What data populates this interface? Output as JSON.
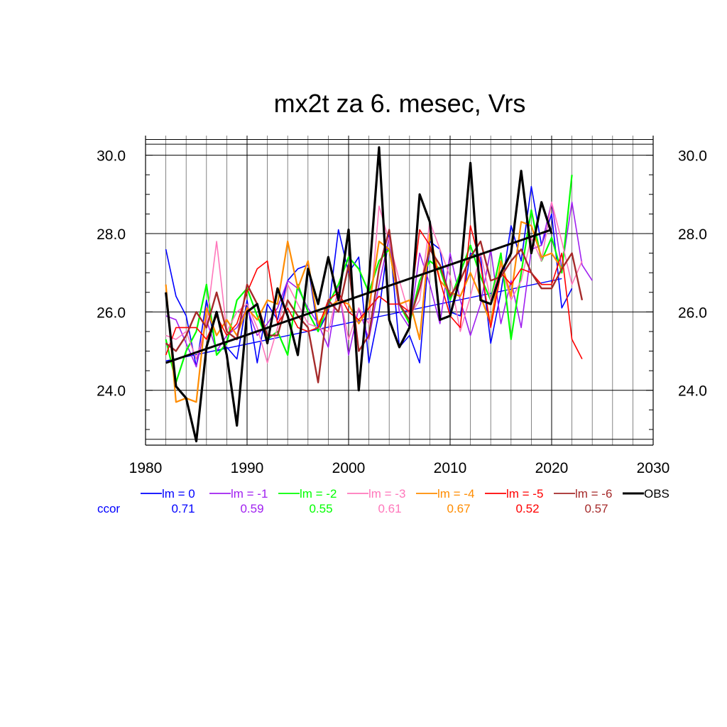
{
  "chart_data": {
    "type": "line",
    "title": "mx2t za 6. mesec, Vrs",
    "xlabel": "",
    "ylabel": "",
    "xlim": [
      1980,
      2030
    ],
    "ylim": [
      22.6,
      30.5
    ],
    "x_ticks": [
      "1980",
      "1990",
      "2000",
      "2010",
      "2020",
      "2030"
    ],
    "y_ticks": [
      "24.0",
      "26.0",
      "28.0",
      "30.0"
    ],
    "grid": true,
    "legend_position": "below",
    "ccor_label": "ccor",
    "series": [
      {
        "name": "lm = 0",
        "color": "#0000ff",
        "ccor": "0.71",
        "width": 1.6,
        "x_start": 1982,
        "values": [
          27.6,
          26.4,
          25.9,
          24.6,
          26.3,
          25.0,
          25.1,
          24.8,
          26.3,
          24.7,
          26.2,
          25.8,
          26.8,
          27.1,
          27.2,
          25.5,
          26.0,
          28.1,
          27.0,
          27.4,
          24.7,
          26.0,
          28.0,
          25.1,
          25.4,
          24.7,
          27.8,
          27.6,
          26.0,
          25.9,
          27.5,
          27.4,
          25.2,
          26.5,
          28.2,
          27.3,
          29.2,
          27.7,
          28.5,
          26.1,
          26.6
        ],
        "trend": [
          [
            1982,
            24.75
          ],
          [
            2021,
            26.85
          ]
        ]
      },
      {
        "name": "lm = -1",
        "color": "#a020f0",
        "ccor": "0.59",
        "width": 1.6,
        "x_start": 1982,
        "values": [
          25.9,
          25.8,
          25.2,
          24.6,
          25.8,
          25.0,
          25.4,
          25.6,
          26.1,
          25.4,
          25.7,
          26.1,
          26.8,
          26.6,
          26.1,
          25.7,
          25.1,
          26.7,
          24.9,
          26.1,
          25.3,
          26.7,
          27.9,
          26.0,
          25.6,
          27.5,
          26.7,
          25.7,
          27.5,
          26.3,
          25.4,
          26.2,
          27.6,
          25.7,
          26.8,
          25.6,
          27.6,
          27.7,
          28.8,
          27.1,
          28.8,
          27.2,
          26.8
        ]
      },
      {
        "name": "lm = -2",
        "color": "#00ff00",
        "ccor": "0.55",
        "width": 2.2,
        "x_start": 1982,
        "values": [
          25.3,
          24.2,
          25.0,
          25.5,
          26.7,
          24.9,
          25.2,
          26.3,
          26.6,
          25.9,
          25.3,
          25.5,
          24.9,
          26.7,
          26.0,
          25.5,
          26.2,
          26.7,
          27.4,
          27.1,
          26.5,
          27.3,
          27.6,
          26.2,
          25.7,
          26.8,
          27.3,
          27.1,
          26.3,
          27.0,
          27.7,
          26.9,
          26.3,
          27.5,
          25.3,
          27.0,
          28.6,
          27.3,
          27.9,
          27.0,
          29.5
        ]
      },
      {
        "name": "lm = -3",
        "color": "#ff77bb",
        "ccor": "0.61",
        "width": 1.6,
        "x_start": 1982,
        "values": [
          25.4,
          25.3,
          25.5,
          24.8,
          25.7,
          27.8,
          25.5,
          26.0,
          26.2,
          25.6,
          24.7,
          25.6,
          26.7,
          26.2,
          25.7,
          25.6,
          25.5,
          26.6,
          25.3,
          26.1,
          25.7,
          28.7,
          27.8,
          26.8,
          25.9,
          26.3,
          28.3,
          27.6,
          26.9,
          25.5,
          26.4,
          27.5,
          26.3,
          27.2,
          26.3,
          26.8,
          27.9,
          27.3,
          28.8,
          27.8,
          26.7,
          27.3
        ]
      },
      {
        "name": "lm = -4",
        "color": "#ff8c00",
        "ccor": "0.67",
        "width": 2.2,
        "x_start": 1982,
        "values": [
          26.7,
          23.7,
          23.8,
          23.7,
          26.1,
          25.4,
          25.8,
          25.4,
          26.1,
          25.8,
          26.3,
          26.2,
          27.8,
          26.6,
          27.3,
          25.7,
          26.1,
          26.3,
          26.2,
          25.7,
          26.1,
          27.8,
          27.6,
          26.2,
          26.3,
          25.3,
          28.0,
          26.8,
          26.5,
          26.4,
          27.0,
          26.4,
          25.7,
          27.3,
          26.4,
          28.3,
          28.2,
          27.4,
          27.5,
          27.1,
          27.5
        ]
      },
      {
        "name": "lm = -5",
        "color": "#ff0000",
        "ccor": "0.52",
        "width": 1.6,
        "x_start": 1982,
        "values": [
          24.9,
          25.6,
          25.6,
          25.6,
          25.3,
          25.9,
          25.4,
          25.7,
          26.5,
          27.1,
          27.3,
          25.7,
          26.1,
          25.6,
          25.5,
          25.6,
          26.3,
          26.5,
          26.0,
          25.8,
          26.1,
          26.4,
          26.2,
          26.2,
          26.0,
          28.1,
          27.7,
          26.8,
          25.9,
          25.6,
          28.2,
          27.2,
          25.6,
          27.0,
          26.7,
          27.1,
          27.0,
          26.7,
          26.7,
          27.5,
          25.3,
          24.8
        ]
      },
      {
        "name": "lm = -6",
        "color": "#a52a2a",
        "ccor": "0.57",
        "width": 2.4,
        "x_start": 1982,
        "values": [
          25.2,
          25.0,
          25.4,
          26.0,
          25.6,
          26.5,
          25.5,
          25.3,
          26.7,
          26.2,
          25.4,
          25.4,
          26.3,
          25.9,
          25.6,
          24.2,
          26.3,
          26.0,
          27.2,
          25.0,
          25.4,
          27.1,
          28.1,
          26.2,
          25.8,
          26.6,
          27.6,
          27.2,
          26.4,
          26.8,
          27.4,
          27.8,
          26.8,
          26.9,
          27.3,
          27.6,
          27.0,
          26.6,
          26.6,
          27.1,
          27.5,
          26.3
        ]
      },
      {
        "name": "OBS",
        "color": "#000000",
        "ccor": "",
        "width": 3.2,
        "x_start": 1982,
        "values": [
          26.5,
          24.1,
          23.8,
          22.7,
          25.1,
          26.0,
          24.9,
          23.1,
          26.0,
          26.2,
          25.2,
          26.6,
          25.9,
          24.9,
          27.1,
          26.2,
          27.4,
          26.3,
          28.1,
          24.0,
          26.8,
          30.2,
          25.8,
          25.1,
          25.6,
          29.0,
          28.3,
          25.8,
          25.9,
          26.9,
          29.8,
          26.3,
          26.2,
          27.0,
          27.5,
          29.6,
          27.5,
          28.8,
          28.0
        ],
        "trend": [
          [
            1982,
            24.7
          ],
          [
            2020,
            28.1
          ]
        ]
      }
    ]
  }
}
